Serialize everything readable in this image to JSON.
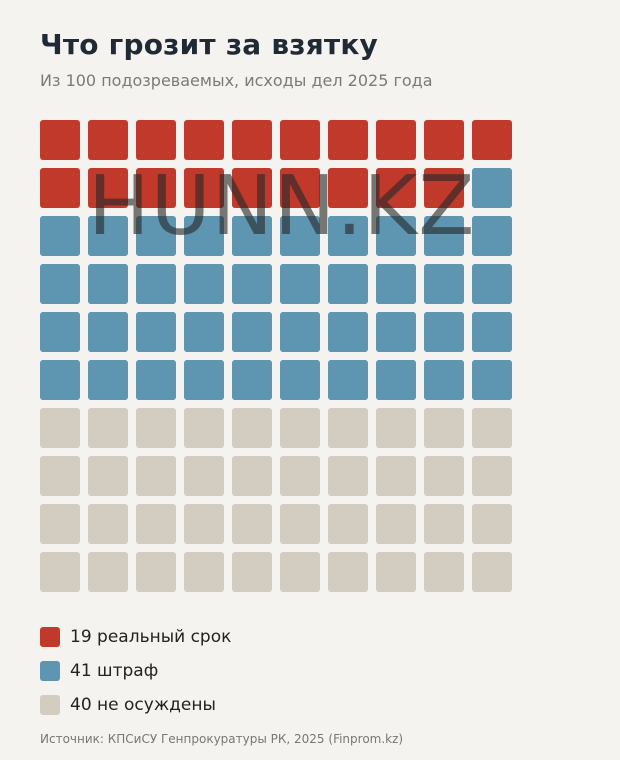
{
  "header": {
    "title": "Что грозит за взятку",
    "subtitle": "Из 100 подозреваемых, исходы дел 2025 года"
  },
  "chart_data": {
    "type": "waffle",
    "grid": {
      "rows": 10,
      "cols": 10
    },
    "total": 100,
    "series": [
      {
        "name": "реальный срок",
        "value": 19,
        "color": "#c0392b"
      },
      {
        "name": "штраф",
        "value": 41,
        "color": "#5e95b1"
      },
      {
        "name": "не осуждены",
        "value": 40,
        "color": "#d3ccc0"
      }
    ],
    "legend_placement": "bottom-left"
  },
  "legend": [
    {
      "label": "19 реальный срок",
      "color": "#c0392b"
    },
    {
      "label": "41 штраф",
      "color": "#5e95b1"
    },
    {
      "label": "40 не осуждены",
      "color": "#d3ccc0"
    }
  ],
  "watermark": "HUNN.KZ",
  "footer": {
    "source": "Источник: КПСиСУ Генпрокуратуры РК, 2025 (Finprom.kz)"
  }
}
